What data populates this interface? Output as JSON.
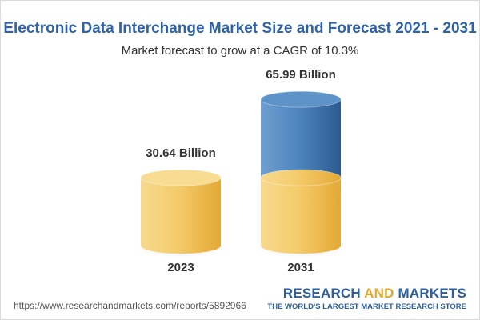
{
  "title": "Electronic Data Interchange Market Size and Forecast 2021 - 2031",
  "subtitle": "Market forecast to grow at a CAGR of 10.3%",
  "chart_data": {
    "type": "bar",
    "categories": [
      "2023",
      "2031"
    ],
    "values": [
      30.64,
      65.99
    ],
    "data_labels": [
      "30.64 Billion",
      "65.99 Billion"
    ],
    "title": "Electronic Data Interchange Market Size and Forecast 2021 - 2031",
    "subtitle": "Market forecast to grow at a CAGR of 10.3%",
    "xlabel": "",
    "ylabel": "",
    "grid": false,
    "colors": {
      "gold": "#f2c55c",
      "gold_dark": "#e4ac3a",
      "blue": "#4f86c0",
      "blue_dark": "#2e5f96"
    }
  },
  "footer": {
    "url": "https://www.researchandmarkets.com/reports/5892966",
    "brand_part1": "RESEARCH ",
    "brand_part2": "AND",
    "brand_part3": " MARKETS",
    "tagline": "THE WORLD'S LARGEST MARKET RESEARCH STORE"
  }
}
